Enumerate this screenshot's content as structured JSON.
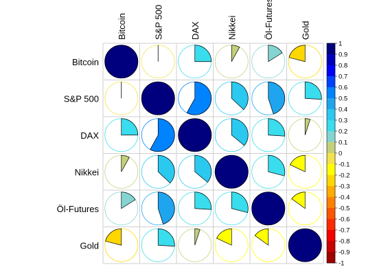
{
  "chart_data": {
    "type": "heatmap",
    "method": "pie",
    "labels": [
      "Bitcoin",
      "S&P 500",
      "DAX",
      "Nikkei",
      "Öl-Futures",
      "Gold"
    ],
    "matrix": [
      [
        1.0,
        0.0,
        0.25,
        0.08,
        0.16,
        -0.21
      ],
      [
        0.0,
        1.0,
        0.58,
        0.37,
        0.45,
        0.26
      ],
      [
        0.25,
        0.58,
        1.0,
        0.36,
        0.26,
        0.05
      ],
      [
        0.08,
        0.37,
        0.36,
        1.0,
        0.29,
        -0.18
      ],
      [
        0.16,
        0.45,
        0.26,
        0.29,
        1.0,
        -0.15
      ],
      [
        -0.21,
        0.26,
        0.05,
        -0.18,
        -0.15,
        1.0
      ]
    ],
    "colorbar": {
      "range": [
        -1,
        1
      ],
      "ticks": [
        "1",
        "0.9",
        "0.8",
        "0.7",
        "0.6",
        "0.5",
        "0.4",
        "0.3",
        "0.2",
        "0.1",
        "0",
        "-0.1",
        "-0.2",
        "-0.3",
        "-0.4",
        "-0.5",
        "-0.6",
        "-0.7",
        "-0.8",
        "-0.9",
        "-1"
      ],
      "colors_top_to_bottom": [
        "#00007F",
        "#0000BB",
        "#0000F7",
        "#0041FF",
        "#0083FF",
        "#1FA5EF",
        "#2BC9EF",
        "#39DDED",
        "#84D5D1",
        "#C4D07A",
        "#F3E24A",
        "#FFFF00",
        "#FFD700",
        "#FFAB00",
        "#FF8000",
        "#FF5500",
        "#FF2A00",
        "#F40000",
        "#CA0000",
        "#9F0000"
      ]
    },
    "grid": true
  }
}
